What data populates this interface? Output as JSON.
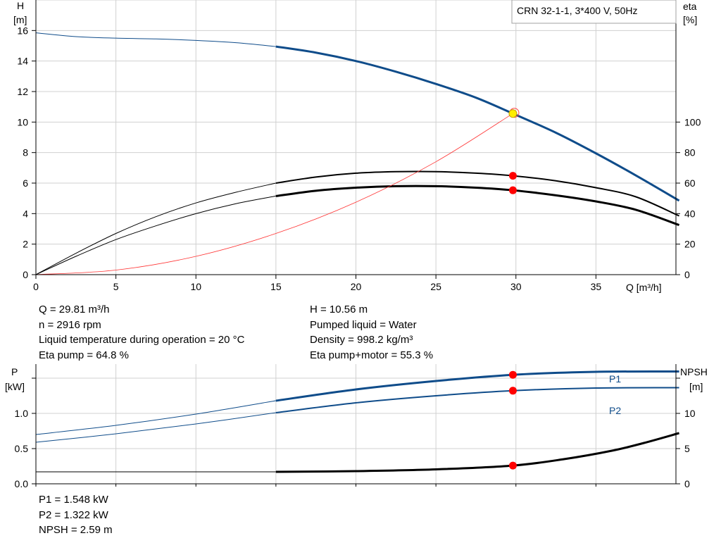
{
  "title_box": "CRN 32-1-1, 3*400 V, 50Hz",
  "chart_data": [
    {
      "type": "line",
      "title": "CRN 32-1-1, 3*400 V, 50Hz",
      "xlabel": "Q [m³/h]",
      "ylabel_left": [
        "H",
        "[m]"
      ],
      "ylabel_right": [
        "eta",
        "[%]"
      ],
      "xlim": [
        0,
        40
      ],
      "ylim_left": [
        0,
        18
      ],
      "ylim_right": [
        0,
        180
      ],
      "x_ticks": [
        "0",
        "5",
        "10",
        "15",
        "20",
        "25",
        "30",
        "35"
      ],
      "y_ticks_left": [
        "0",
        "2",
        "4",
        "6",
        "8",
        "10",
        "12",
        "14",
        "16"
      ],
      "y_ticks_right": [
        "0",
        "20",
        "40",
        "60",
        "80",
        "100"
      ],
      "grid": true,
      "duty_point": {
        "x": 29.81,
        "y": 10.56
      },
      "series": [
        {
          "name": "H",
          "axis": "left",
          "color": "#0f4c8a",
          "thin_x": [
            0,
            2.5,
            5,
            7.5,
            10,
            12.5,
            15
          ],
          "thin_y": [
            15.85,
            15.6,
            15.5,
            15.45,
            15.35,
            15.2,
            14.95
          ],
          "x": [
            15,
            17.5,
            20,
            22.5,
            25,
            27.5,
            29.81,
            32.5,
            35,
            37.5,
            40.2
          ],
          "y": [
            14.95,
            14.55,
            14.0,
            13.3,
            12.5,
            11.6,
            10.56,
            9.3,
            7.95,
            6.5,
            4.85
          ]
        },
        {
          "name": "Eta pump",
          "axis": "right",
          "color": "#000000",
          "thin_x": [
            0,
            2.5,
            5,
            7.5,
            10,
            12.5,
            15
          ],
          "thin_y": [
            0,
            14,
            27,
            38,
            47,
            54,
            60
          ],
          "x": [
            15,
            17.5,
            20,
            22.5,
            25,
            27.5,
            29.81,
            32.5,
            35,
            37.5,
            40.2
          ],
          "y": [
            60,
            64,
            66.5,
            67.5,
            67.5,
            66.5,
            64.8,
            61.5,
            57,
            51,
            38.5
          ]
        },
        {
          "name": "Eta pump+motor",
          "axis": "right",
          "color": "#000000",
          "thin_x": [
            0,
            2.5,
            5,
            7.5,
            10,
            12.5,
            15
          ],
          "thin_y": [
            0,
            12,
            23,
            32,
            40,
            46.5,
            51.5
          ],
          "x": [
            15,
            17.5,
            20,
            22.5,
            25,
            27.5,
            29.81,
            32.5,
            35,
            37.5,
            40.2
          ],
          "y": [
            51.5,
            55,
            57,
            58,
            58,
            57,
            55.3,
            52,
            48,
            42.5,
            32.5
          ]
        },
        {
          "name": "System curve",
          "axis": "left",
          "color": "#ff3333",
          "x": [
            0,
            5,
            10,
            15,
            20,
            25,
            29.81
          ],
          "y": [
            0,
            0.3,
            1.2,
            2.7,
            4.75,
            7.4,
            10.56
          ]
        }
      ]
    },
    {
      "type": "line",
      "xlim": [
        0,
        40
      ],
      "ylim_left": [
        0,
        1.7
      ],
      "ylim_right": [
        0,
        17
      ],
      "ylabel_left": [
        "P",
        "[kW]"
      ],
      "ylabel_right": [
        "NPSH",
        "[m]"
      ],
      "y_ticks_left": [
        "0.0",
        "0.5",
        "1.0"
      ],
      "y_ticks_right": [
        "0",
        "5",
        "10"
      ],
      "grid": true,
      "series": [
        {
          "name": "P1",
          "axis": "left",
          "color": "#0f4c8a",
          "thin_x": [
            0,
            5,
            10,
            15
          ],
          "thin_y": [
            0.7,
            0.83,
            0.99,
            1.18
          ],
          "x": [
            15,
            20,
            25,
            29.81,
            35,
            40.2
          ],
          "y": [
            1.18,
            1.34,
            1.46,
            1.548,
            1.59,
            1.595
          ]
        },
        {
          "name": "P2",
          "axis": "left",
          "color": "#0f4c8a",
          "thin_x": [
            0,
            5,
            10,
            15
          ],
          "thin_y": [
            0.59,
            0.71,
            0.85,
            1.01
          ],
          "x": [
            15,
            20,
            25,
            29.81,
            35,
            40.2
          ],
          "y": [
            1.01,
            1.15,
            1.25,
            1.322,
            1.36,
            1.365
          ]
        },
        {
          "name": "NPSH",
          "axis": "right",
          "color": "#000000",
          "thin_x": [
            0,
            15
          ],
          "thin_y": [
            1.7,
            1.7
          ],
          "x": [
            15,
            20,
            25,
            29.81,
            33,
            36,
            38,
            40.2
          ],
          "y": [
            1.7,
            1.8,
            2.05,
            2.59,
            3.5,
            4.7,
            5.8,
            7.2
          ]
        }
      ],
      "markers": [
        {
          "series": "P1",
          "x": 29.81,
          "y": 1.548
        },
        {
          "series": "P2",
          "x": 29.81,
          "y": 1.322
        },
        {
          "series": "NPSH",
          "x": 29.81,
          "y": 2.59
        }
      ],
      "curve_labels": [
        "P1",
        "P2"
      ]
    }
  ],
  "info_top_left": [
    "Q = 29.81 m³/h",
    "n = 2916 rpm",
    "Liquid temperature during operation = 20 °C",
    "Eta pump = 64.8 %"
  ],
  "info_top_right": [
    "H = 10.56 m",
    "Pumped liquid = Water",
    "Density = 998.2 kg/m³",
    "Eta pump+motor = 55.3 %"
  ],
  "info_bottom": [
    "P1 = 1.548 kW",
    "P2 = 1.322 kW",
    "NPSH = 2.59 m"
  ]
}
